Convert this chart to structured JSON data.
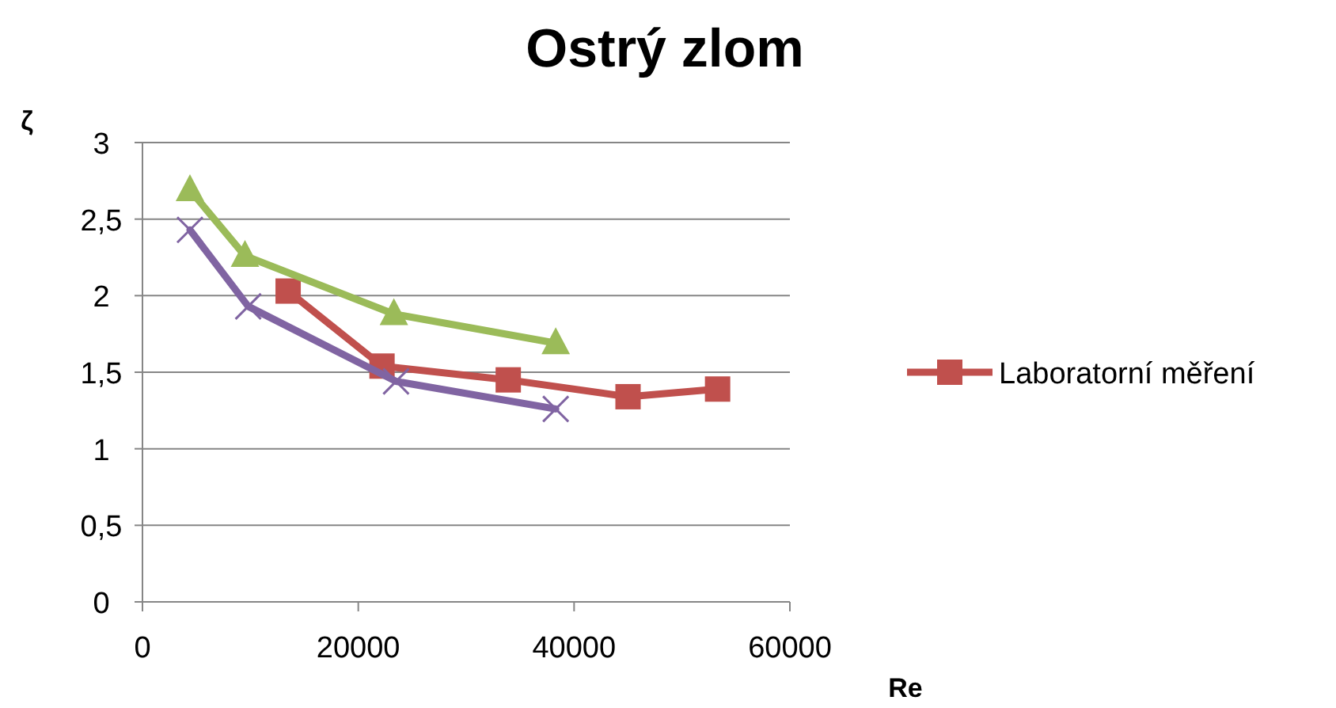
{
  "chart_data": {
    "type": "line",
    "title": "Ostrý zlom",
    "xlabel": "Re",
    "ylabel": "ζ",
    "xlim": [
      0,
      60000
    ],
    "xticks": [
      0,
      20000,
      40000,
      60000
    ],
    "ylim": [
      0,
      3
    ],
    "yticks": [
      0,
      {
        "value": 0.5,
        "label": "0,5"
      },
      1,
      {
        "value": 1.5,
        "label": "1,5"
      },
      2,
      {
        "value": 2.5,
        "label": "2,5"
      },
      3
    ],
    "grid": "y",
    "legend": "right",
    "series": [
      {
        "name": "Laboratorní měření",
        "color": "#c0504d",
        "marker": "square",
        "x": [
          13500,
          22200,
          33900,
          45000,
          53300
        ],
        "values": [
          2.03,
          1.54,
          1.45,
          1.34,
          1.39
        ]
      },
      {
        "color": "#9bbb59",
        "marker": "triangle",
        "x": [
          4400,
          9500,
          23300,
          38300
        ],
        "values": [
          2.69,
          2.26,
          1.88,
          1.69
        ]
      },
      {
        "color": "#8064a2",
        "marker": "cross",
        "x": [
          4400,
          9800,
          23500,
          38300
        ],
        "values": [
          2.43,
          1.93,
          1.44,
          1.26
        ]
      }
    ]
  }
}
